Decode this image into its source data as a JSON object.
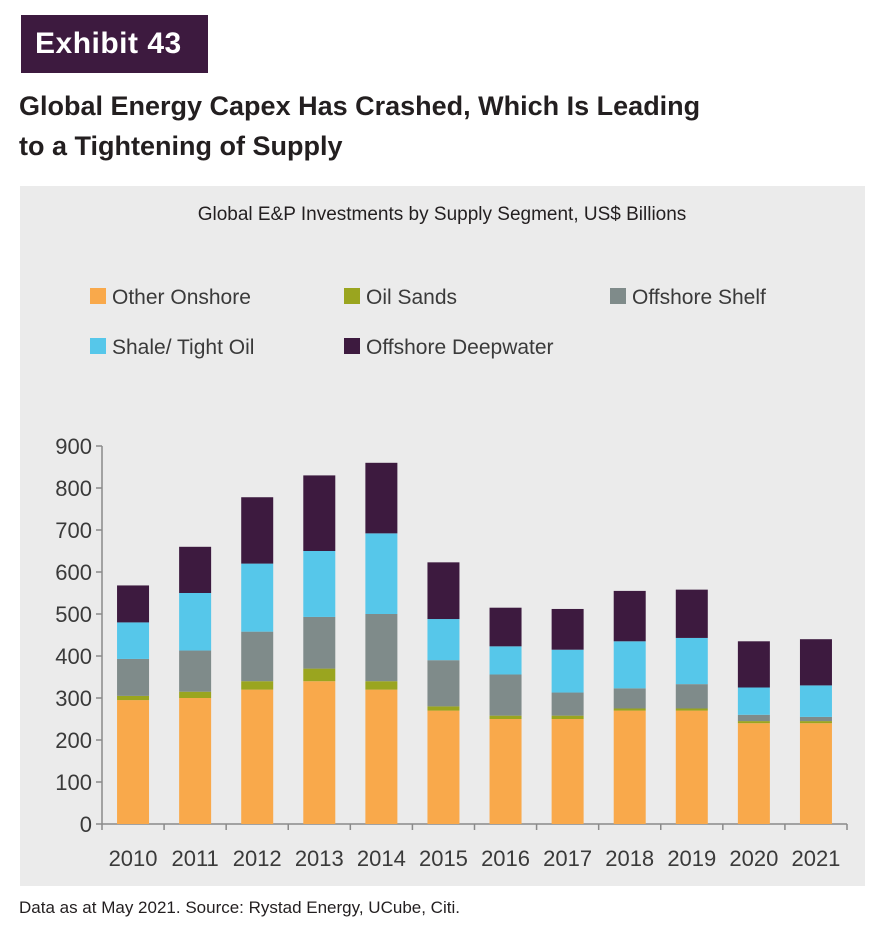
{
  "exhibit": {
    "label": "Exhibit 43"
  },
  "header": {
    "title_line1": "Global Energy Capex Has Crashed, Which Is Leading",
    "title_line2": "to a Tightening of Supply"
  },
  "footer": {
    "source": "Data as at May 2021. Source: Rystad Energy, UCube, Citi."
  },
  "colors": {
    "exhibit_bg": "#3d1a3f",
    "panel_bg": "#ebebeb",
    "other_onshore": "#f9a94b",
    "oil_sands": "#9aa51f",
    "offshore_shelf": "#7f8b8a",
    "shale_tight_oil": "#56c7ea",
    "offshore_deepwater": "#3d1a3f"
  },
  "chart_data": {
    "type": "bar",
    "stacked": true,
    "title": "Global E&P Investments by Supply Segment, US$ Billions",
    "xlabel": "",
    "ylabel": "",
    "ylim": [
      0,
      900
    ],
    "yticks": [
      "0",
      "100",
      "200",
      "300",
      "400",
      "500",
      "600",
      "700",
      "800",
      "900"
    ],
    "grid": false,
    "legend_position": "top",
    "categories": [
      "2010",
      "2011",
      "2012",
      "2013",
      "2014",
      "2015",
      "2016",
      "2017",
      "2018",
      "2019",
      "2020",
      "2021"
    ],
    "series": [
      {
        "name": "Other Onshore",
        "color": "#f9a94b",
        "values": [
          295,
          300,
          320,
          340,
          320,
          270,
          250,
          250,
          270,
          270,
          240,
          240
        ]
      },
      {
        "name": "Oil Sands",
        "color": "#9aa51f",
        "values": [
          10,
          15,
          20,
          30,
          20,
          10,
          8,
          8,
          5,
          5,
          5,
          5
        ]
      },
      {
        "name": "Offshore Shelf",
        "color": "#7f8b8a",
        "values": [
          88,
          98,
          118,
          123,
          160,
          110,
          98,
          55,
          48,
          58,
          15,
          10
        ]
      },
      {
        "name": "Shale/ Tight Oil",
        "color": "#56c7ea",
        "values": [
          87,
          137,
          162,
          157,
          192,
          98,
          67,
          102,
          112,
          110,
          65,
          75
        ]
      },
      {
        "name": "Offshore Deepwater",
        "color": "#3d1a3f",
        "values": [
          88,
          110,
          158,
          180,
          168,
          135,
          92,
          97,
          120,
          115,
          110,
          110
        ]
      }
    ]
  }
}
